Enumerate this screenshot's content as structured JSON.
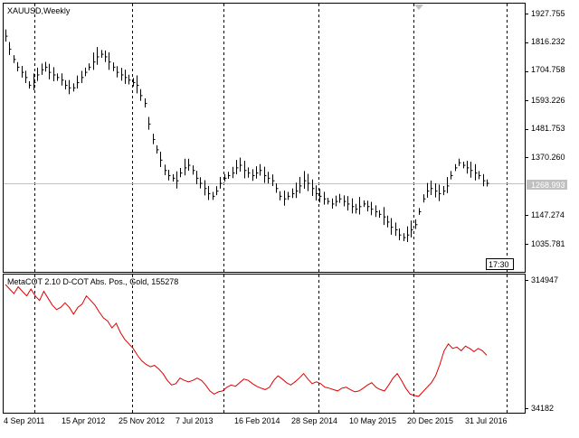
{
  "main_panel": {
    "symbol_label": "XAUUSD,Weekly",
    "price_ticks": [
      "1927.755",
      "1816.232",
      "1704.758",
      "1593.226",
      "1481.753",
      "1370.260",
      "1147.274",
      "1035.781"
    ],
    "current_price": "1268.993",
    "current_price_label_color": "#c0c0c0",
    "time_badge": "17:30"
  },
  "indicator_panel": {
    "label": "MetaCOT 2.10 D-COT Abs. Pos., Gold, 155278",
    "ticks": [
      "314947",
      "34182"
    ],
    "line_color": "#e00000"
  },
  "time_axis": {
    "labels": [
      "4 Sep 2011",
      "15 Apr 2012",
      "25 Nov 2012",
      "7 Jul 2013",
      "16 Feb 2014",
      "28 Sep 2014",
      "10 May 2015",
      "20 Dec 2015",
      "31 Jul 2016"
    ]
  },
  "chart_data": [
    {
      "type": "line",
      "title": "XAUUSD,Weekly",
      "ylim": [
        1000,
        1940
      ],
      "y_ticks": [
        1927.755,
        1816.232,
        1704.758,
        1593.226,
        1481.753,
        1370.26,
        1147.274,
        1035.781
      ],
      "x_tick_labels": [
        "4 Sep 2011",
        "15 Apr 2012",
        "25 Nov 2012",
        "7 Jul 2013",
        "16 Feb 2014",
        "28 Sep 2014",
        "10 May 2015",
        "20 Dec 2015",
        "31 Jul 2016"
      ],
      "current_price": 1268.993,
      "series": [
        {
          "values": [
            1840,
            1790,
            1750,
            1720,
            1700,
            1680,
            1650,
            1660,
            1690,
            1710,
            1720,
            1700,
            1690,
            1680,
            1670,
            1650,
            1640,
            1640,
            1660,
            1680,
            1700,
            1720,
            1740,
            1760,
            1770,
            1760,
            1740,
            1720,
            1700,
            1690,
            1680,
            1670,
            1660,
            1650,
            1610,
            1580,
            1500,
            1440,
            1400,
            1360,
            1320,
            1300,
            1290,
            1280,
            1310,
            1330,
            1340,
            1320,
            1290,
            1270,
            1250,
            1230,
            1220,
            1240,
            1270,
            1290,
            1300,
            1310,
            1330,
            1340,
            1320,
            1310,
            1300,
            1310,
            1320,
            1300,
            1290,
            1280,
            1250,
            1220,
            1210,
            1220,
            1230,
            1240,
            1260,
            1280,
            1270,
            1250,
            1230,
            1220,
            1210,
            1200,
            1190,
            1200,
            1210,
            1200,
            1190,
            1180,
            1170,
            1180,
            1190,
            1180,
            1170,
            1160,
            1150,
            1140,
            1120,
            1100,
            1090,
            1070,
            1060,
            1070,
            1090,
            1110,
            1160,
            1210,
            1240,
            1250,
            1240,
            1230,
            1240,
            1260,
            1300,
            1330,
            1350,
            1340,
            1330,
            1320,
            1310,
            1300,
            1280,
            1270
          ]
        }
      ]
    },
    {
      "type": "line",
      "title": "MetaCOT 2.10 D-COT Abs. Pos., Gold, 155278",
      "ylim": [
        34182,
        314947
      ],
      "y_ticks": [
        314947,
        34182
      ],
      "series": [
        {
          "values": [
            305000,
            295000,
            285000,
            300000,
            290000,
            280000,
            295000,
            280000,
            270000,
            290000,
            275000,
            260000,
            250000,
            255000,
            265000,
            255000,
            240000,
            255000,
            262000,
            280000,
            270000,
            260000,
            245000,
            232000,
            225000,
            210000,
            220000,
            200000,
            185000,
            175000,
            165000,
            150000,
            138000,
            130000,
            125000,
            128000,
            120000,
            110000,
            95000,
            85000,
            88000,
            100000,
            95000,
            92000,
            95000,
            100000,
            95000,
            85000,
            72000,
            65000,
            70000,
            72000,
            80000,
            85000,
            82000,
            90000,
            98000,
            95000,
            88000,
            82000,
            78000,
            75000,
            80000,
            95000,
            105000,
            98000,
            90000,
            85000,
            92000,
            100000,
            110000,
            98000,
            88000,
            92000,
            88000,
            80000,
            78000,
            75000,
            72000,
            78000,
            80000,
            75000,
            70000,
            72000,
            78000,
            85000,
            90000,
            80000,
            75000,
            72000,
            85000,
            100000,
            110000,
            95000,
            78000,
            65000,
            62000,
            60000,
            70000,
            80000,
            90000,
            105000,
            130000,
            160000,
            175000,
            165000,
            168000,
            160000,
            170000,
            165000,
            158000,
            165000,
            160000,
            150000
          ]
        }
      ]
    }
  ]
}
